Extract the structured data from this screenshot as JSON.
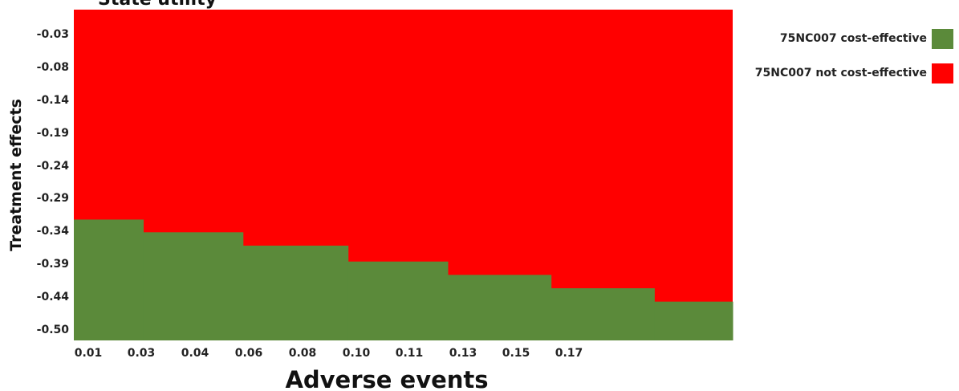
{
  "chart_data": {
    "type": "heatmap",
    "title": "State utility",
    "xlabel": "Adverse events",
    "ylabel": "Treatment effects",
    "x_ticks": [
      "0.01",
      "0.03",
      "0.04",
      "0.06",
      "0.08",
      "0.10",
      "0.11",
      "0.13",
      "0.15",
      "0.17"
    ],
    "y_ticks": [
      "-0.03",
      "-0.08",
      "-0.14",
      "-0.19",
      "-0.24",
      "-0.29",
      "-0.34",
      "-0.39",
      "-0.44",
      "-0.50"
    ],
    "xlim": [
      0.0,
      0.185
    ],
    "ylim": [
      -0.52,
      0.0
    ],
    "regions": [
      {
        "name": "75NC007 cost-effective",
        "color": "#5b8a3a"
      },
      {
        "name": "75NC007 not cost-effective",
        "color": "#ff0000"
      }
    ],
    "threshold_steps": [
      {
        "x_start": 0.0,
        "x_end": 0.0195,
        "threshold": -0.33
      },
      {
        "x_start": 0.0195,
        "x_end": 0.0475,
        "threshold": -0.35
      },
      {
        "x_start": 0.0475,
        "x_end": 0.077,
        "threshold": -0.371
      },
      {
        "x_start": 0.077,
        "x_end": 0.105,
        "threshold": -0.396
      },
      {
        "x_start": 0.105,
        "x_end": 0.134,
        "threshold": -0.417
      },
      {
        "x_start": 0.134,
        "x_end": 0.163,
        "threshold": -0.438
      },
      {
        "x_start": 0.163,
        "x_end": 0.185,
        "threshold": -0.459
      }
    ],
    "legend": {
      "position": "top-right",
      "entries": [
        {
          "label": "75NC007 cost-effective",
          "color": "#5b8a3a"
        },
        {
          "label": "75NC007 not cost-effective",
          "color": "#ff0000"
        }
      ]
    },
    "grid": false
  }
}
